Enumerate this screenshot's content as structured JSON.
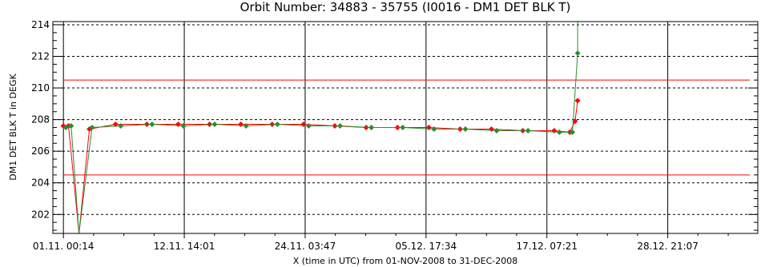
{
  "chart_data": {
    "type": "line",
    "title": "Orbit Number: 34883 - 35755 (I0016 - DM1 DET BLK T)",
    "xlabel": "X (time in UTC) from 01-NOV-2008 to 31-DEC-2008",
    "ylabel": "DM1 DET BLK T in DEGK",
    "xlim": [
      "2008-10-31T00:00",
      "2009-01-06T12:00"
    ],
    "ylim": [
      200.8,
      214.2
    ],
    "x_ticks": [
      "01.11. 00:14",
      "12.11. 14:01",
      "24.11. 03:47",
      "05.12. 17:34",
      "17.12. 07:21",
      "28.12. 21:07"
    ],
    "x_tick_dates": [
      "2008-11-01T00:14",
      "2008-11-12T14:01",
      "2008-11-24T03:47",
      "2008-12-05T17:34",
      "2008-12-17T07:21",
      "2008-12-28T21:07"
    ],
    "y_ticks": [
      202,
      204,
      206,
      208,
      210,
      212,
      214
    ],
    "grid": true,
    "limit_lines": [
      {
        "value": 210.5,
        "color": "#ff0000"
      },
      {
        "value": 204.5,
        "color": "#ff0000"
      }
    ],
    "series": [
      {
        "color": "#ff0000",
        "x": [
          "2008-11-01T00:00",
          "2008-11-01T12:00",
          "2008-11-02T12:00",
          "2008-11-03T12:00",
          "2008-11-06T00:00",
          "2008-11-09T00:00",
          "2008-11-12T00:00",
          "2008-11-15T00:00",
          "2008-11-18T00:00",
          "2008-11-21T00:00",
          "2008-11-24T00:00",
          "2008-11-27T00:00",
          "2008-11-30T00:00",
          "2008-12-03T00:00",
          "2008-12-06T00:00",
          "2008-12-09T00:00",
          "2008-12-12T00:00",
          "2008-12-15T00:00",
          "2008-12-18T00:00",
          "2008-12-19T12:00",
          "2008-12-20T00:00",
          "2008-12-20T06:00"
        ],
        "y": [
          207.6,
          207.6,
          200.8,
          207.4,
          207.7,
          207.7,
          207.7,
          207.7,
          207.7,
          207.7,
          207.7,
          207.6,
          207.5,
          207.5,
          207.5,
          207.4,
          207.4,
          207.3,
          207.3,
          207.2,
          207.9,
          209.2
        ]
      },
      {
        "color": "#2e8b2e",
        "x": [
          "2008-11-01T06:00",
          "2008-11-01T18:00",
          "2008-11-02T12:00",
          "2008-11-03T18:00",
          "2008-11-06T12:00",
          "2008-11-09T12:00",
          "2008-11-12T12:00",
          "2008-11-15T12:00",
          "2008-11-18T12:00",
          "2008-11-21T12:00",
          "2008-11-24T12:00",
          "2008-11-27T12:00",
          "2008-11-30T12:00",
          "2008-12-03T12:00",
          "2008-12-06T12:00",
          "2008-12-09T12:00",
          "2008-12-12T12:00",
          "2008-12-15T12:00",
          "2008-12-18T12:00",
          "2008-12-19T18:00",
          "2008-12-20T06:00",
          "2008-12-20T06:00"
        ],
        "y": [
          207.5,
          207.6,
          200.8,
          207.5,
          207.6,
          207.7,
          207.6,
          207.7,
          207.6,
          207.7,
          207.6,
          207.6,
          207.5,
          207.5,
          207.4,
          207.4,
          207.3,
          207.3,
          207.2,
          207.2,
          212.2,
          214.2
        ]
      }
    ]
  }
}
